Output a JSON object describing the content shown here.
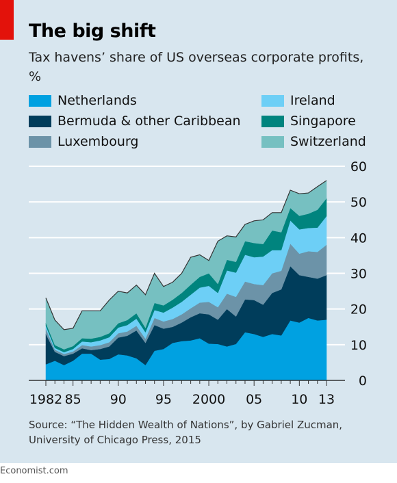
{
  "header": {
    "title": "The big shift",
    "subtitle": "Tax havens’ share of US overseas corporate profits, %"
  },
  "source": "Source: “The Hidden Wealth of Nations”, by Gabriel Zucman, University of Chicago Press, 2015",
  "brand": "Economist.com",
  "colors": {
    "panel_bg": "#d8e6ef",
    "accent_red": "#e3120b",
    "gridline": "#ffffff",
    "baseline": "#333333"
  },
  "chart_data": {
    "type": "area",
    "stacked": true,
    "x": [
      1982,
      1983,
      1984,
      1985,
      1986,
      1987,
      1988,
      1989,
      1990,
      1991,
      1992,
      1993,
      1994,
      1995,
      1996,
      1997,
      1998,
      1999,
      2000,
      2001,
      2002,
      2003,
      2004,
      2005,
      2006,
      2007,
      2008,
      2009,
      2010,
      2011,
      2012,
      2013
    ],
    "x_tick_labels": [
      {
        "x": 1982,
        "label": "1982"
      },
      {
        "x": 1985,
        "label": "85"
      },
      {
        "x": 1990,
        "label": "90"
      },
      {
        "x": 1995,
        "label": "95"
      },
      {
        "x": 2000,
        "label": "2000"
      },
      {
        "x": 2005,
        "label": "05"
      },
      {
        "x": 2010,
        "label": "10"
      },
      {
        "x": 2013,
        "label": "13"
      }
    ],
    "y_ticks": [
      0,
      10,
      20,
      30,
      40,
      50,
      60
    ],
    "ylim": [
      0,
      60
    ],
    "y_axis_side": "right",
    "grid": true,
    "legend_position": "top",
    "series": [
      {
        "name": "Netherlands",
        "color": "#00a1e1",
        "values": [
          4.5,
          5.5,
          4.3,
          5.5,
          7.5,
          7.5,
          5.8,
          6.0,
          7.3,
          7.0,
          6.2,
          4.3,
          8.3,
          8.8,
          10.5,
          11.0,
          11.2,
          11.8,
          10.3,
          10.2,
          9.5,
          10.2,
          13.5,
          13.0,
          12.2,
          13.0,
          12.6,
          16.8,
          16.2,
          17.5,
          16.8,
          17.0
        ]
      },
      {
        "name": "Bermuda & other Caribbean",
        "color": "#003d5b",
        "values": [
          8.5,
          2.5,
          2.5,
          2.0,
          1.5,
          1.0,
          3.0,
          3.5,
          4.7,
          5.5,
          7.8,
          6.2,
          7.2,
          5.7,
          4.5,
          5.2,
          6.5,
          7.0,
          8.2,
          6.8,
          10.5,
          7.7,
          9.2,
          9.5,
          9.0,
          11.5,
          12.9,
          15.2,
          13.3,
          11.5,
          11.7,
          12.5
        ]
      },
      {
        "name": "Luxembourg",
        "color": "#6c93a8",
        "values": [
          1.5,
          0.6,
          0.6,
          0.6,
          0.9,
          1.0,
          1.1,
          1.2,
          1.2,
          1.2,
          1.3,
          1.2,
          2.0,
          2.0,
          2.2,
          2.3,
          2.5,
          3.0,
          3.5,
          3.5,
          4.3,
          5.5,
          5.0,
          4.5,
          5.5,
          5.5,
          5.2,
          6.3,
          6.0,
          7.2,
          7.5,
          8.5
        ]
      },
      {
        "name": "Ireland",
        "color": "#6dcff6",
        "values": [
          0.8,
          0.5,
          0.5,
          0.7,
          1.0,
          1.2,
          1.3,
          1.4,
          1.6,
          1.8,
          2.0,
          1.8,
          2.2,
          2.5,
          3.2,
          3.5,
          3.8,
          4.2,
          4.5,
          4.0,
          6.5,
          6.8,
          7.5,
          7.5,
          8.0,
          6.5,
          5.8,
          6.5,
          6.8,
          6.5,
          6.8,
          8.0
        ]
      },
      {
        "name": "Singapore",
        "color": "#00847e",
        "values": [
          0.8,
          0.8,
          0.8,
          0.8,
          0.9,
          1.0,
          1.0,
          1.1,
          1.2,
          1.4,
          1.5,
          1.2,
          2.0,
          2.0,
          2.2,
          2.5,
          2.8,
          3.0,
          3.5,
          2.5,
          3.0,
          3.0,
          3.8,
          4.0,
          3.5,
          5.5,
          5.0,
          3.5,
          3.8,
          4.0,
          5.0,
          5.0
        ]
      },
      {
        "name": "Switzerland",
        "color": "#76c0c1",
        "values": [
          7.0,
          7.0,
          5.5,
          5.0,
          7.7,
          7.8,
          7.3,
          9.3,
          9.0,
          7.6,
          7.9,
          9.3,
          8.3,
          5.3,
          4.9,
          5.5,
          7.7,
          6.2,
          3.6,
          12.0,
          6.7,
          7.0,
          4.7,
          6.2,
          6.8,
          5.0,
          5.5,
          5.0,
          6.2,
          5.8,
          6.5,
          5.0
        ]
      }
    ]
  }
}
